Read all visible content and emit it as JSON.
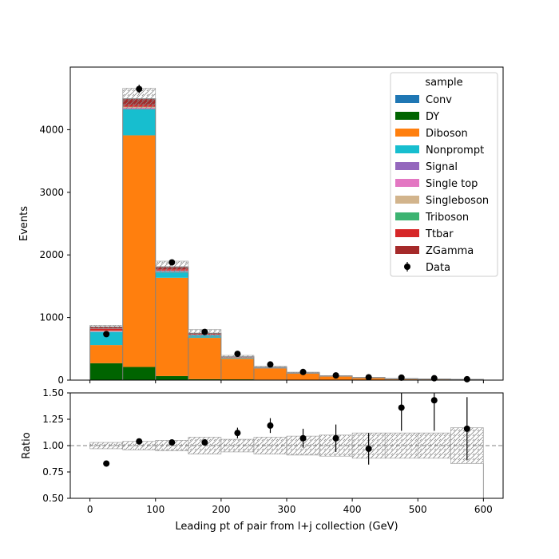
{
  "chart_data": [
    {
      "type": "bar",
      "stacked": true,
      "ylabel": "Events",
      "xlim": [
        -30,
        630
      ],
      "ylim": [
        0,
        5000
      ],
      "bin_edges": [
        0,
        50,
        100,
        150,
        200,
        250,
        300,
        350,
        400,
        450,
        500,
        550,
        600
      ],
      "xticks": [
        0,
        100,
        200,
        300,
        400,
        500,
        600
      ],
      "yticks": [
        0,
        1000,
        2000,
        3000,
        4000
      ],
      "legend_title": "sample",
      "legend_position": "top-right",
      "series": [
        {
          "name": "Conv",
          "color": "#1f77b4",
          "values": [
            0,
            0,
            0,
            0,
            0,
            0,
            0,
            0,
            0,
            0,
            0,
            0
          ]
        },
        {
          "name": "DY",
          "color": "#006400",
          "values": [
            270,
            210,
            65,
            15,
            12,
            8,
            5,
            3,
            2,
            1,
            1,
            1
          ]
        },
        {
          "name": "Diboson",
          "color": "#ff7f0e",
          "values": [
            290,
            3700,
            1570,
            660,
            330,
            180,
            100,
            55,
            35,
            22,
            15,
            10
          ]
        },
        {
          "name": "Nonprompt",
          "color": "#17becf",
          "values": [
            210,
            420,
            100,
            40,
            15,
            8,
            5,
            3,
            2,
            2,
            1,
            1
          ]
        },
        {
          "name": "Signal",
          "color": "#9467bd",
          "values": [
            5,
            10,
            5,
            3,
            2,
            1,
            1,
            1,
            0,
            0,
            0,
            0
          ]
        },
        {
          "name": "Single top",
          "color": "#e377c2",
          "values": [
            5,
            10,
            5,
            3,
            2,
            1,
            1,
            1,
            0,
            0,
            0,
            0
          ]
        },
        {
          "name": "Singleboson",
          "color": "#d2b48c",
          "values": [
            10,
            15,
            5,
            3,
            2,
            1,
            1,
            1,
            0,
            0,
            0,
            0
          ]
        },
        {
          "name": "Triboson",
          "color": "#3cb371",
          "values": [
            0,
            0,
            0,
            0,
            0,
            0,
            0,
            0,
            0,
            0,
            0,
            0
          ]
        },
        {
          "name": "Ttbar",
          "color": "#d62728",
          "values": [
            30,
            30,
            20,
            10,
            5,
            3,
            2,
            1,
            1,
            0,
            0,
            0
          ]
        },
        {
          "name": "ZGamma",
          "color": "#a52a2a",
          "values": [
            30,
            100,
            40,
            15,
            5,
            3,
            2,
            1,
            1,
            0,
            0,
            0
          ]
        }
      ],
      "data": {
        "name": "Data",
        "values": [
          735,
          4650,
          1880,
          770,
          420,
          250,
          130,
          75,
          45,
          40,
          30,
          15
        ]
      },
      "uncertainty": [
        0.03,
        0.037,
        0.05,
        0.08,
        0.06,
        0.08,
        0.09,
        0.1,
        0.12,
        0.12,
        0.12,
        0.17
      ]
    },
    {
      "type": "scatter",
      "xlabel": "Leading pt of pair from l+j collection (GeV)",
      "ylabel": "Ratio",
      "xlim": [
        -30,
        630
      ],
      "ylim": [
        0.5,
        1.5
      ],
      "xticks": [
        0,
        100,
        200,
        300,
        400,
        500,
        600
      ],
      "yticks": [
        0.5,
        0.75,
        1.0,
        1.25,
        1.5
      ],
      "ytick_labels": [
        "0.50",
        "0.75",
        "1.00",
        "1.25",
        "1.50"
      ],
      "reference_line": 1.0,
      "x": [
        25,
        75,
        125,
        175,
        225,
        275,
        325,
        375,
        425,
        475,
        525,
        575
      ],
      "y": [
        0.83,
        1.04,
        1.03,
        1.03,
        1.12,
        1.19,
        1.07,
        1.07,
        0.97,
        1.36,
        1.43,
        1.16
      ],
      "yerr": [
        0.01,
        0.01,
        0.02,
        0.03,
        0.05,
        0.07,
        0.09,
        0.13,
        0.15,
        0.22,
        0.29,
        0.3
      ],
      "band_low": [
        0.97,
        0.96,
        0.95,
        0.92,
        0.94,
        0.92,
        0.91,
        0.9,
        0.88,
        0.88,
        0.88,
        0.83
      ],
      "band_high": [
        1.03,
        1.04,
        1.05,
        1.08,
        1.06,
        1.08,
        1.09,
        1.1,
        1.12,
        1.12,
        1.12,
        1.17
      ]
    }
  ]
}
